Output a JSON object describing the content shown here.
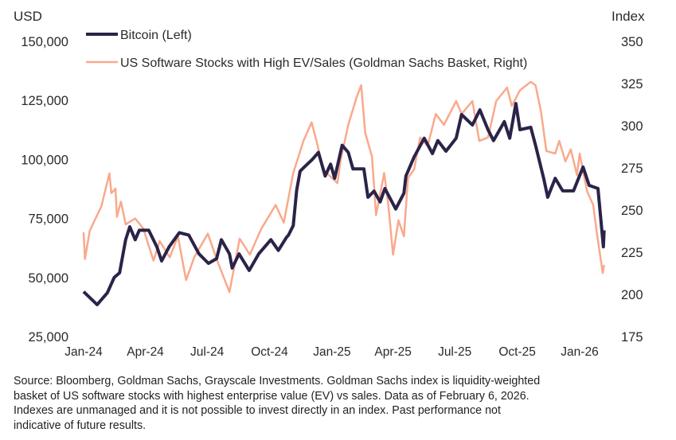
{
  "chart_data": {
    "type": "line",
    "left_axis": {
      "unit_label": "USD",
      "range": [
        25000,
        150000
      ],
      "ticks": [
        "150,000",
        "125,000",
        "100,000",
        "75,000",
        "50,000",
        "25,000"
      ],
      "tick_values": [
        150000,
        125000,
        100000,
        75000,
        50000,
        25000
      ]
    },
    "right_axis": {
      "unit_label": "Index",
      "range": [
        175,
        350
      ],
      "ticks": [
        "350",
        "325",
        "300",
        "275",
        "250",
        "225",
        "200",
        "175"
      ],
      "tick_values": [
        350,
        325,
        300,
        275,
        250,
        225,
        200,
        175
      ]
    },
    "x_axis": {
      "ticks": [
        "Jan-24",
        "Apr-24",
        "Jul-24",
        "Oct-24",
        "Jan-25",
        "Apr-25",
        "Jul-25",
        "Oct-25",
        "Jan-26"
      ],
      "tick_dates": [
        "2024-01-01",
        "2024-04-01",
        "2024-07-01",
        "2024-10-01",
        "2025-01-01",
        "2025-04-01",
        "2025-07-01",
        "2025-10-01",
        "2026-01-01"
      ]
    },
    "grid": false,
    "legend": "top-left",
    "series": [
      {
        "name": "Bitcoin (Left)",
        "axis": "left",
        "color": "#2b2348",
        "points": [
          [
            "2024-01-01",
            44000
          ],
          [
            "2024-01-21",
            38500
          ],
          [
            "2024-02-05",
            43500
          ],
          [
            "2024-02-15",
            50000
          ],
          [
            "2024-02-23",
            52000
          ],
          [
            "2024-03-03",
            66000
          ],
          [
            "2024-03-09",
            71500
          ],
          [
            "2024-03-17",
            66000
          ],
          [
            "2024-03-23",
            70000
          ],
          [
            "2024-04-06",
            70000
          ],
          [
            "2024-04-18",
            63000
          ],
          [
            "2024-04-25",
            57000
          ],
          [
            "2024-05-06",
            63000
          ],
          [
            "2024-05-21",
            69000
          ],
          [
            "2024-06-04",
            68000
          ],
          [
            "2024-06-19",
            60000
          ],
          [
            "2024-07-03",
            56000
          ],
          [
            "2024-07-15",
            58000
          ],
          [
            "2024-07-22",
            66000
          ],
          [
            "2024-08-03",
            60000
          ],
          [
            "2024-08-07",
            54000
          ],
          [
            "2024-08-17",
            60000
          ],
          [
            "2024-09-01",
            53000
          ],
          [
            "2024-09-15",
            60000
          ],
          [
            "2024-10-03",
            66000
          ],
          [
            "2024-10-14",
            61500
          ],
          [
            "2024-10-26",
            67000
          ],
          [
            "2024-10-29",
            68000
          ],
          [
            "2024-11-05",
            72000
          ],
          [
            "2024-11-10",
            87000
          ],
          [
            "2024-11-15",
            95000
          ],
          [
            "2024-11-22",
            97000
          ],
          [
            "2024-12-03",
            100000
          ],
          [
            "2024-12-12",
            103000
          ],
          [
            "2024-12-22",
            93000
          ],
          [
            "2024-12-30",
            98000
          ],
          [
            "2025-01-05",
            92000
          ],
          [
            "2025-01-16",
            106000
          ],
          [
            "2025-01-25",
            103000
          ],
          [
            "2025-02-01",
            96000
          ],
          [
            "2025-02-17",
            96000
          ],
          [
            "2025-02-23",
            84000
          ],
          [
            "2025-03-04",
            86600
          ],
          [
            "2025-03-13",
            82000
          ],
          [
            "2025-03-20",
            87700
          ],
          [
            "2025-04-05",
            79000
          ],
          [
            "2025-04-17",
            85700
          ],
          [
            "2025-04-20",
            93000
          ],
          [
            "2025-05-02",
            101000
          ],
          [
            "2025-05-17",
            109000
          ],
          [
            "2025-05-29",
            102500
          ],
          [
            "2025-06-06",
            108000
          ],
          [
            "2025-06-18",
            103500
          ],
          [
            "2025-07-03",
            109000
          ],
          [
            "2025-07-11",
            119000
          ],
          [
            "2025-07-27",
            114600
          ],
          [
            "2025-08-07",
            121000
          ],
          [
            "2025-08-19",
            112600
          ],
          [
            "2025-08-27",
            108000
          ],
          [
            "2025-09-12",
            116000
          ],
          [
            "2025-09-20",
            109000
          ],
          [
            "2025-09-29",
            123700
          ],
          [
            "2025-10-05",
            112600
          ],
          [
            "2025-10-21",
            113600
          ],
          [
            "2025-10-28",
            106000
          ],
          [
            "2025-11-09",
            92000
          ],
          [
            "2025-11-15",
            84000
          ],
          [
            "2025-11-26",
            92000
          ],
          [
            "2025-12-07",
            86700
          ],
          [
            "2025-12-23",
            86700
          ],
          [
            "2026-01-06",
            96800
          ],
          [
            "2026-01-15",
            89000
          ],
          [
            "2026-01-28",
            87700
          ],
          [
            "2026-02-05",
            63000
          ],
          [
            "2026-02-06",
            70000
          ]
        ]
      },
      {
        "name": "US Software Stocks with High EV/Sales (Goldman Sachs Basket, Right)",
        "axis": "right",
        "color": "#f9a98c",
        "points": [
          [
            "2024-01-01",
            236.8
          ],
          [
            "2024-01-03",
            221
          ],
          [
            "2024-01-10",
            237.7
          ],
          [
            "2024-01-21",
            247
          ],
          [
            "2024-01-27",
            252
          ],
          [
            "2024-02-08",
            271.7
          ],
          [
            "2024-02-11",
            260
          ],
          [
            "2024-02-17",
            262.7
          ],
          [
            "2024-02-19",
            246
          ],
          [
            "2024-02-25",
            255
          ],
          [
            "2024-03-03",
            241.5
          ],
          [
            "2024-03-17",
            245
          ],
          [
            "2024-03-29",
            239
          ],
          [
            "2024-04-13",
            220
          ],
          [
            "2024-04-22",
            231.6
          ],
          [
            "2024-05-07",
            222
          ],
          [
            "2024-05-19",
            234.4
          ],
          [
            "2024-05-31",
            208.5
          ],
          [
            "2024-06-12",
            222
          ],
          [
            "2024-07-02",
            236
          ],
          [
            "2024-07-17",
            218.9
          ],
          [
            "2024-08-03",
            201.4
          ],
          [
            "2024-08-18",
            233
          ],
          [
            "2024-09-02",
            223.6
          ],
          [
            "2024-09-19",
            239
          ],
          [
            "2024-10-10",
            253
          ],
          [
            "2024-10-22",
            242.5
          ],
          [
            "2024-11-05",
            272
          ],
          [
            "2024-11-20",
            291
          ],
          [
            "2024-12-02",
            302
          ],
          [
            "2024-12-10",
            289.6
          ],
          [
            "2024-12-19",
            274
          ],
          [
            "2025-01-09",
            266
          ],
          [
            "2025-01-14",
            280
          ],
          [
            "2025-01-25",
            300.5
          ],
          [
            "2025-02-06",
            316.5
          ],
          [
            "2025-02-13",
            324
          ],
          [
            "2025-02-19",
            295.8
          ],
          [
            "2025-03-01",
            281.6
          ],
          [
            "2025-03-07",
            247
          ],
          [
            "2025-03-19",
            272
          ],
          [
            "2025-03-25",
            253
          ],
          [
            "2025-04-01",
            223.6
          ],
          [
            "2025-04-09",
            243.9
          ],
          [
            "2025-04-17",
            234.4
          ],
          [
            "2025-04-23",
            269
          ],
          [
            "2025-05-02",
            274
          ],
          [
            "2025-05-11",
            293
          ],
          [
            "2025-05-22",
            288
          ],
          [
            "2025-06-03",
            307
          ],
          [
            "2025-06-15",
            300.5
          ],
          [
            "2025-07-03",
            314.6
          ],
          [
            "2025-07-11",
            307
          ],
          [
            "2025-07-27",
            314.6
          ],
          [
            "2025-08-06",
            291
          ],
          [
            "2025-08-19",
            293
          ],
          [
            "2025-08-31",
            314.6
          ],
          [
            "2025-09-16",
            322.6
          ],
          [
            "2025-09-23",
            311.8
          ],
          [
            "2025-10-05",
            321
          ],
          [
            "2025-10-21",
            326
          ],
          [
            "2025-10-28",
            324
          ],
          [
            "2025-11-05",
            308.5
          ],
          [
            "2025-11-13",
            285
          ],
          [
            "2025-11-26",
            283.5
          ],
          [
            "2025-12-02",
            291
          ],
          [
            "2025-12-11",
            278.8
          ],
          [
            "2025-12-19",
            286
          ],
          [
            "2025-12-28",
            270.8
          ],
          [
            "2026-01-01",
            283.5
          ],
          [
            "2026-01-12",
            261
          ],
          [
            "2026-01-21",
            253
          ],
          [
            "2026-01-27",
            234.4
          ],
          [
            "2026-02-04",
            212.7
          ],
          [
            "2026-02-06",
            217.5
          ]
        ]
      }
    ]
  },
  "footnote": {
    "lines": [
      "Source: Bloomberg, Goldman Sachs, Grayscale Investments. Goldman Sachs index is liquidity-weighted",
      "basket of US software stocks with highest enterprise value (EV) vs sales. Data as of February 6, 2026.",
      "Indexes are unmanaged and it is not possible to invest directly in an index. Past performance not",
      "indicative of future results."
    ]
  }
}
